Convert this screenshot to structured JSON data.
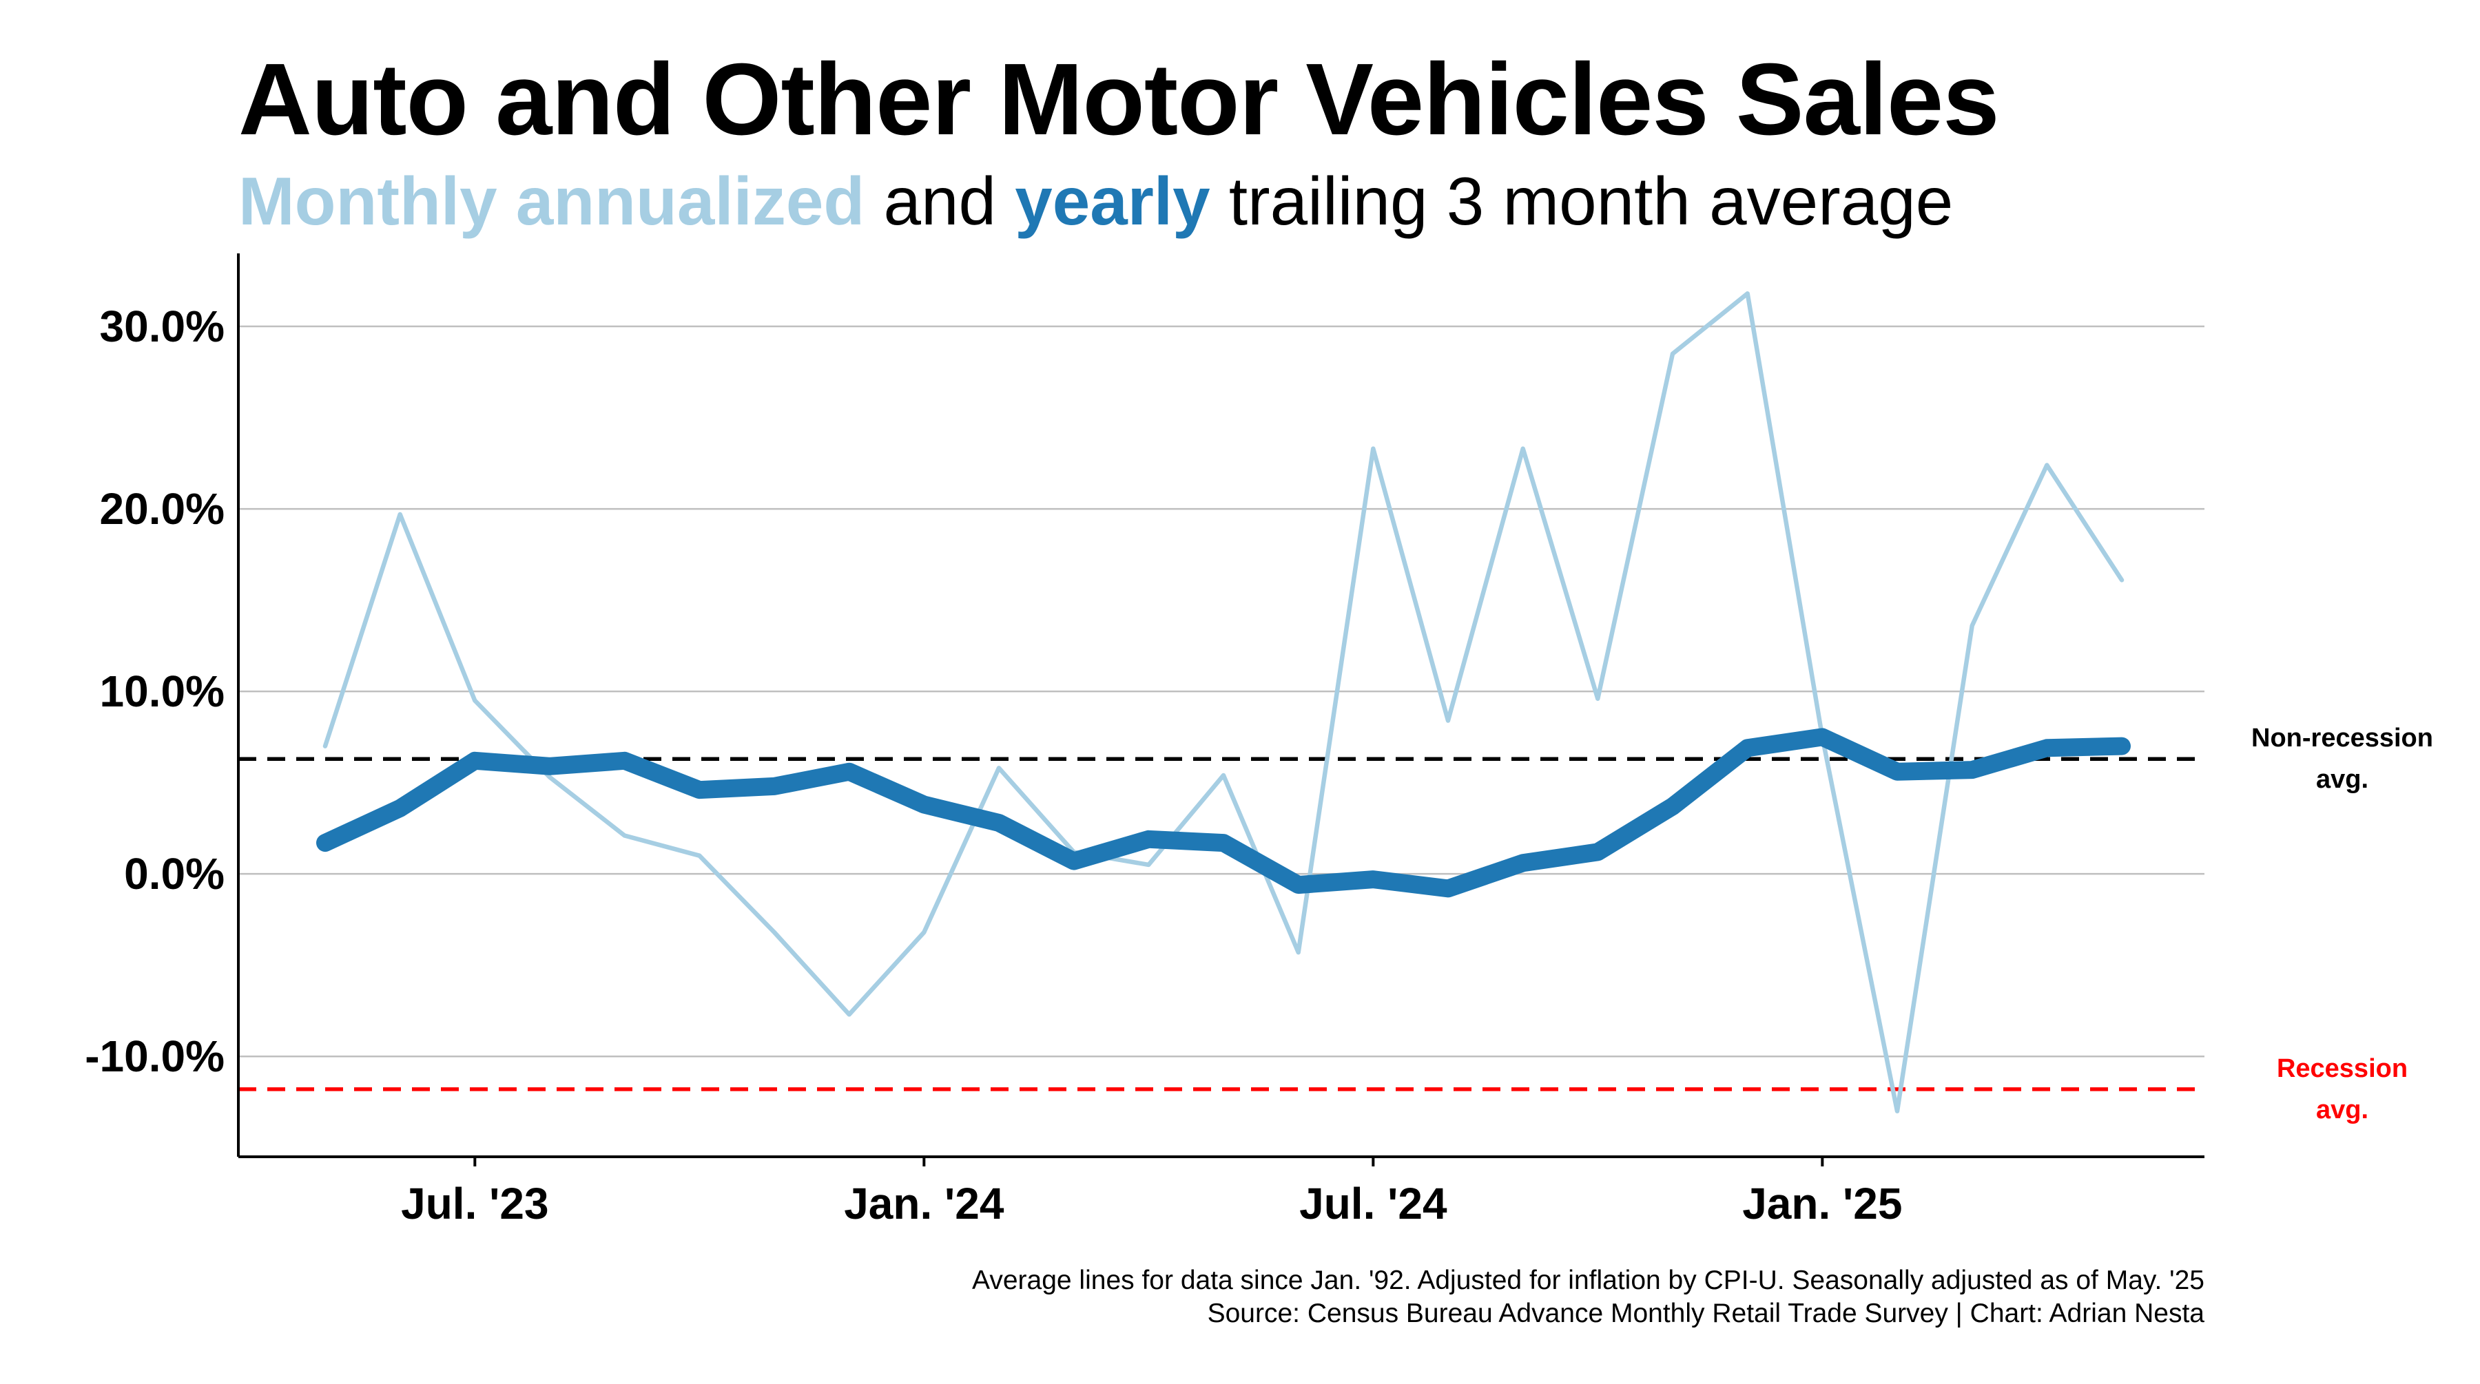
{
  "title": "Auto and Other Motor Vehicles Sales",
  "subtitle": {
    "part1": "Monthly annualized",
    "part2": " and ",
    "part3": "yearly",
    "part4": " trailing 3 month average"
  },
  "footer": {
    "line1": "Average lines for data since Jan. '92. Adjusted for inflation by CPI-U. Seasonally adjusted as of May. '25",
    "line2": "Source: Census Bureau Advance Monthly Retail Trade Survey | Chart: Adrian Nesta"
  },
  "colors": {
    "monthly": "#a6cee3",
    "yearly": "#1f78b4",
    "non_recession": "#000000",
    "recession": "#ff0000",
    "grid": "#bfbfbf"
  },
  "chart_data": {
    "type": "line",
    "x_start": "2023-05",
    "x": [
      "2023-05",
      "2023-06",
      "2023-07",
      "2023-08",
      "2023-09",
      "2023-10",
      "2023-11",
      "2023-12",
      "2024-01",
      "2024-02",
      "2024-03",
      "2024-04",
      "2024-05",
      "2024-06",
      "2024-07",
      "2024-08",
      "2024-09",
      "2024-10",
      "2024-11",
      "2024-12",
      "2025-01",
      "2025-02",
      "2025-03",
      "2025-04",
      "2025-05"
    ],
    "ylim": [
      -15.5,
      34
    ],
    "yticks": [
      -10,
      0,
      10,
      20,
      30
    ],
    "ytick_labels": [
      "-10.0%",
      "0.0%",
      "10.0%",
      "20.0%",
      "30.0%"
    ],
    "xticks": [
      {
        "x": "2023-07",
        "label": "Jul. '23"
      },
      {
        "x": "2024-01",
        "label": "Jan. '24"
      },
      {
        "x": "2024-07",
        "label": "Jul. '24"
      },
      {
        "x": "2025-01",
        "label": "Jan. '25"
      }
    ],
    "grid": true,
    "series": [
      {
        "key": "monthly",
        "values": [
          7.0,
          19.7,
          9.5,
          5.3,
          2.1,
          1.0,
          -3.2,
          -7.7,
          -3.2,
          5.8,
          1.2,
          0.5,
          5.4,
          -4.3,
          23.3,
          8.4,
          23.3,
          9.6,
          28.5,
          31.8,
          7.5,
          -13.0,
          13.6,
          22.4,
          16.1
        ]
      },
      {
        "key": "yearly",
        "values": [
          1.7,
          3.6,
          6.2,
          5.9,
          6.2,
          4.6,
          4.8,
          5.6,
          3.8,
          2.8,
          0.7,
          1.9,
          1.7,
          -0.6,
          -0.3,
          -0.8,
          0.6,
          1.2,
          3.7,
          6.9,
          7.5,
          5.6,
          5.7,
          6.9,
          7.0
        ]
      }
    ],
    "reference_lines": [
      {
        "key": "non_recession",
        "value": 6.3,
        "label_line1": "Non-recession",
        "label_line2": "avg."
      },
      {
        "key": "recession",
        "value": -11.8,
        "label_line1": "Recession",
        "label_line2": "avg."
      }
    ]
  }
}
